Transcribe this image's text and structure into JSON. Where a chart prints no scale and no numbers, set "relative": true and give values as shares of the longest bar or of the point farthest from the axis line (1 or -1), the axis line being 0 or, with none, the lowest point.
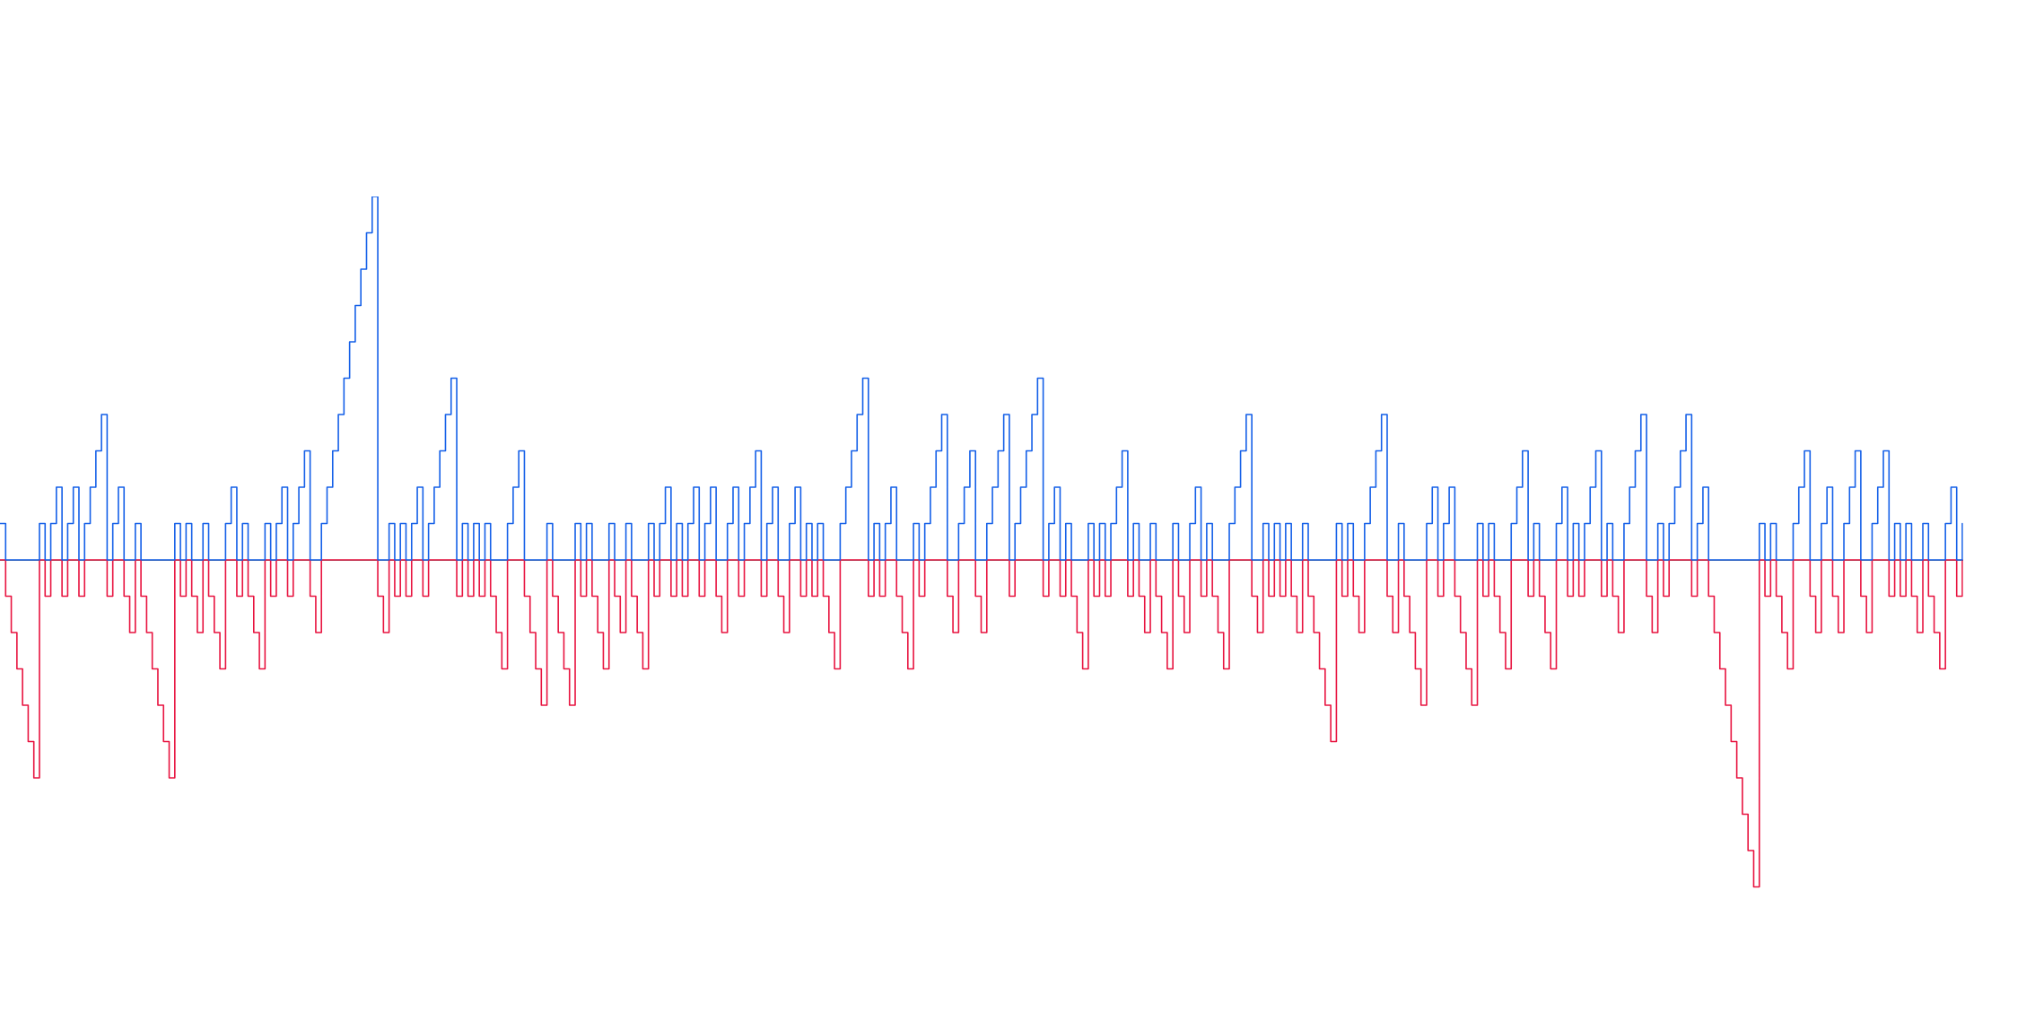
{
  "chart_data": {
    "type": "step",
    "relative": true,
    "marker": "none",
    "tick_labels": false,
    "categories": [
      null,
      null,
      null,
      null,
      null,
      null,
      null,
      null,
      null,
      null,
      null,
      null,
      null,
      null,
      null,
      null,
      null,
      null,
      null,
      null,
      null,
      null,
      null,
      null,
      null,
      null,
      null,
      null,
      null,
      null,
      null,
      null,
      null,
      null,
      null,
      null,
      null,
      null,
      null,
      null,
      null,
      null,
      null,
      null,
      null,
      null,
      null,
      null,
      null,
      null,
      null,
      null,
      null,
      null,
      null,
      null,
      null,
      null,
      null,
      null,
      null,
      null,
      null,
      null,
      null,
      null,
      null,
      null,
      null,
      null,
      null,
      null,
      null,
      null,
      null,
      null,
      null,
      null,
      null,
      null,
      null,
      null,
      null,
      null,
      null,
      null,
      null,
      null,
      null,
      null,
      null,
      null,
      null,
      null,
      null,
      null,
      null,
      null,
      null,
      null,
      null,
      null,
      null,
      null,
      null,
      null,
      null,
      null,
      null,
      null,
      null,
      null,
      null,
      null,
      null,
      null,
      null,
      null,
      null,
      null,
      null,
      null,
      null,
      null,
      null,
      null,
      null,
      null,
      null,
      null,
      null,
      null,
      null,
      null,
      null,
      null,
      null,
      null,
      null,
      null,
      null,
      null,
      null,
      null,
      null,
      null,
      null,
      null,
      null,
      null,
      null,
      null,
      null,
      null,
      null,
      null,
      null,
      null,
      null,
      null,
      null,
      null,
      null,
      null,
      null,
      null,
      null,
      null,
      null,
      null,
      null,
      null,
      null,
      null,
      null,
      null,
      null,
      null,
      null,
      null,
      null,
      null,
      null,
      null,
      null,
      null,
      null,
      null,
      null,
      null,
      null,
      null,
      null,
      null,
      null,
      null,
      null,
      null,
      null,
      null,
      null,
      null,
      null,
      null,
      null,
      null,
      null,
      null,
      null,
      null,
      null,
      null,
      null,
      null,
      null,
      null,
      null,
      null,
      null,
      null,
      null,
      null,
      null,
      null,
      null,
      null,
      null,
      null,
      null,
      null,
      null,
      null,
      null,
      null,
      null,
      null,
      null,
      null,
      null,
      null,
      null,
      null,
      null,
      null,
      null,
      null,
      null,
      null,
      null,
      null,
      null,
      null,
      null,
      null,
      null,
      null,
      null,
      null,
      null,
      null,
      null,
      null,
      null,
      null,
      null,
      null,
      null,
      null,
      null,
      null,
      null,
      null,
      null,
      null,
      null,
      null,
      null,
      null,
      null,
      null,
      null,
      null,
      null,
      null,
      null,
      null,
      null,
      null,
      null,
      null,
      null,
      null,
      null,
      null,
      null,
      null,
      null,
      null,
      null,
      null,
      null,
      null,
      null,
      null,
      null,
      null,
      null,
      null,
      null,
      null,
      null,
      null,
      null,
      null,
      null,
      null,
      null,
      null,
      null,
      null,
      null,
      null,
      null,
      null,
      null,
      null,
      null,
      null,
      null,
      null,
      null,
      null,
      null,
      null,
      null,
      null,
      null,
      null,
      null,
      null,
      null,
      null,
      null,
      null,
      null,
      null,
      null,
      null,
      null
    ],
    "series": [
      {
        "color": "#1560e8",
        "values": [
          0.1,
          0,
          0,
          0,
          0,
          0,
          0,
          0.1,
          0,
          0.1,
          0.2,
          0,
          0.1,
          0.2,
          0,
          0.1,
          0.2,
          0.3,
          0.4,
          0,
          0.1,
          0.2,
          0,
          0,
          0.1,
          0,
          0,
          0,
          0,
          0,
          0,
          0.1,
          0,
          0.1,
          0,
          0,
          0.1,
          0,
          0,
          0,
          0.1,
          0.2,
          0,
          0.1,
          0,
          0,
          0,
          0.1,
          0,
          0.1,
          0.2,
          0,
          0.1,
          0.2,
          0.3,
          0,
          0,
          0.1,
          0.2,
          0.3,
          0.4,
          0.5,
          0.6,
          0.7,
          0.8,
          0.9,
          1,
          0,
          0,
          0.1,
          0,
          0.1,
          0,
          0.1,
          0.2,
          0,
          0.1,
          0.2,
          0.3,
          0.4,
          0.5,
          0,
          0.1,
          0,
          0.1,
          0,
          0.1,
          0,
          0,
          0,
          0.1,
          0.2,
          0.3,
          0,
          0,
          0,
          0,
          0.1,
          0,
          0,
          0,
          0,
          0.1,
          0,
          0.1,
          0,
          0,
          0,
          0.1,
          0,
          0,
          0.1,
          0,
          0,
          0,
          0.1,
          0,
          0.1,
          0.2,
          0,
          0.1,
          0,
          0.1,
          0.2,
          0,
          0.1,
          0.2,
          0,
          0,
          0.1,
          0.2,
          0,
          0.1,
          0.2,
          0.3,
          0,
          0.1,
          0.2,
          0,
          0,
          0.1,
          0.2,
          0,
          0.1,
          0,
          0.1,
          0,
          0,
          0,
          0.1,
          0.2,
          0.3,
          0.4,
          0.5,
          0,
          0.1,
          0,
          0.1,
          0.2,
          0,
          0,
          0,
          0.1,
          0,
          0.1,
          0.2,
          0.3,
          0.4,
          0,
          0,
          0.1,
          0.2,
          0.3,
          0,
          0,
          0.1,
          0.2,
          0.3,
          0.4,
          0,
          0.1,
          0.2,
          0.3,
          0.4,
          0.5,
          0,
          0.1,
          0.2,
          0,
          0.1,
          0,
          0,
          0,
          0.1,
          0,
          0.1,
          0,
          0.1,
          0.2,
          0.3,
          0,
          0.1,
          0,
          0,
          0.1,
          0,
          0,
          0,
          0.1,
          0,
          0,
          0.1,
          0.2,
          0,
          0.1,
          0,
          0,
          0,
          0.1,
          0.2,
          0.3,
          0.4,
          0,
          0,
          0.1,
          0,
          0.1,
          0,
          0.1,
          0,
          0,
          0.1,
          0,
          0,
          0,
          0,
          0,
          0.1,
          0,
          0.1,
          0,
          0,
          0.1,
          0.2,
          0.3,
          0.4,
          0,
          0,
          0.1,
          0,
          0,
          0,
          0,
          0.1,
          0.2,
          0,
          0.1,
          0.2,
          0,
          0,
          0,
          0,
          0.1,
          0,
          0.1,
          0,
          0,
          0,
          0.1,
          0.2,
          0.3,
          0,
          0.1,
          0,
          0,
          0,
          0.1,
          0.2,
          0,
          0.1,
          0,
          0.1,
          0.2,
          0.3,
          0,
          0.1,
          0,
          0,
          0.1,
          0.2,
          0.3,
          0.4,
          0,
          0,
          0.1,
          0,
          0.1,
          0.2,
          0.3,
          0.4,
          0,
          0.1,
          0.2,
          0,
          0,
          0,
          0,
          0,
          0,
          0,
          0,
          0,
          0.1,
          0,
          0.1,
          0,
          0,
          0,
          0.1,
          0.2,
          0.3,
          0,
          0,
          0.1,
          0.2,
          0,
          0,
          0.1,
          0.2,
          0.3,
          0,
          0,
          0.1,
          0.2,
          0.3,
          0,
          0.1,
          0,
          0.1,
          0,
          0,
          0.1,
          0,
          0,
          0,
          0.1,
          0.2,
          0,
          0.1
        ]
      },
      {
        "color": "#e81440",
        "values": [
          0,
          -0.1,
          -0.2,
          -0.3,
          -0.4,
          -0.5,
          -0.6,
          0,
          -0.1,
          0,
          0,
          -0.1,
          0,
          0,
          -0.1,
          0,
          0,
          0,
          0,
          -0.1,
          0,
          0,
          -0.1,
          -0.2,
          0,
          -0.1,
          -0.2,
          -0.3,
          -0.4,
          -0.5,
          -0.6,
          0,
          -0.1,
          0,
          -0.1,
          -0.2,
          0,
          -0.1,
          -0.2,
          -0.3,
          0,
          0,
          -0.1,
          0,
          -0.1,
          -0.2,
          -0.3,
          0,
          -0.1,
          0,
          0,
          -0.1,
          0,
          0,
          0,
          -0.1,
          -0.2,
          0,
          0,
          0,
          0,
          0,
          0,
          0,
          0,
          0,
          0,
          -0.1,
          -0.2,
          0,
          -0.1,
          0,
          -0.1,
          0,
          0,
          -0.1,
          0,
          0,
          0,
          0,
          0,
          -0.1,
          0,
          -0.1,
          0,
          -0.1,
          0,
          -0.1,
          -0.2,
          -0.3,
          0,
          0,
          0,
          -0.1,
          -0.2,
          -0.3,
          -0.4,
          0,
          -0.1,
          -0.2,
          -0.3,
          -0.4,
          0,
          -0.1,
          0,
          -0.1,
          -0.2,
          -0.3,
          0,
          -0.1,
          -0.2,
          0,
          -0.1,
          -0.2,
          -0.3,
          0,
          -0.1,
          0,
          0,
          -0.1,
          0,
          -0.1,
          0,
          0,
          -0.1,
          0,
          0,
          -0.1,
          -0.2,
          0,
          0,
          -0.1,
          0,
          0,
          0,
          -0.1,
          0,
          0,
          -0.1,
          -0.2,
          0,
          0,
          -0.1,
          0,
          -0.1,
          0,
          -0.1,
          -0.2,
          -0.3,
          0,
          0,
          0,
          0,
          0,
          -0.1,
          0,
          -0.1,
          0,
          0,
          -0.1,
          -0.2,
          -0.3,
          0,
          -0.1,
          0,
          0,
          0,
          0,
          -0.1,
          -0.2,
          0,
          0,
          0,
          -0.1,
          -0.2,
          0,
          0,
          0,
          0,
          -0.1,
          0,
          0,
          0,
          0,
          0,
          -0.1,
          0,
          0,
          -0.1,
          0,
          -0.1,
          -0.2,
          -0.3,
          0,
          -0.1,
          0,
          -0.1,
          0,
          0,
          0,
          -0.1,
          0,
          -0.1,
          -0.2,
          0,
          -0.1,
          -0.2,
          -0.3,
          0,
          -0.1,
          -0.2,
          0,
          0,
          -0.1,
          0,
          -0.1,
          -0.2,
          -0.3,
          0,
          0,
          0,
          0,
          -0.1,
          -0.2,
          0,
          -0.1,
          0,
          -0.1,
          0,
          -0.1,
          -0.2,
          0,
          -0.1,
          -0.2,
          -0.3,
          -0.4,
          -0.5,
          0,
          -0.1,
          0,
          -0.1,
          -0.2,
          0,
          0,
          0,
          0,
          -0.1,
          -0.2,
          0,
          -0.1,
          -0.2,
          -0.3,
          -0.4,
          0,
          0,
          -0.1,
          0,
          0,
          -0.1,
          -0.2,
          -0.3,
          -0.4,
          0,
          -0.1,
          0,
          -0.1,
          -0.2,
          -0.3,
          0,
          0,
          0,
          -0.1,
          0,
          -0.1,
          -0.2,
          -0.3,
          0,
          0,
          -0.1,
          0,
          -0.1,
          0,
          0,
          0,
          -0.1,
          0,
          -0.1,
          -0.2,
          0,
          0,
          0,
          0,
          -0.1,
          -0.2,
          0,
          -0.1,
          0,
          0,
          0,
          0,
          -0.1,
          0,
          0,
          -0.1,
          -0.2,
          -0.3,
          -0.4,
          -0.5,
          -0.6,
          -0.7,
          -0.8,
          -0.9,
          0,
          -0.1,
          0,
          -0.1,
          -0.2,
          -0.3,
          0,
          0,
          0,
          -0.1,
          -0.2,
          0,
          0,
          -0.1,
          -0.2,
          0,
          0,
          0,
          -0.1,
          -0.2,
          0,
          0,
          0,
          -0.1,
          0,
          -0.1,
          0,
          -0.1,
          -0.2,
          0,
          -0.1,
          -0.2,
          -0.3,
          0,
          0,
          -0.1,
          0
        ]
      }
    ]
  }
}
